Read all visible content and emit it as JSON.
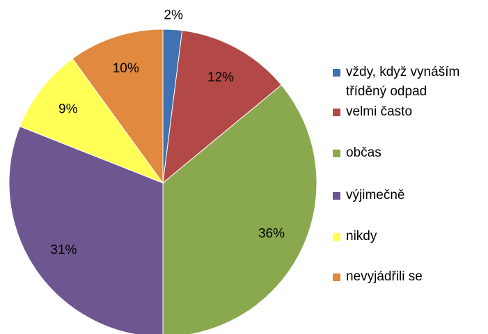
{
  "chart_data": {
    "type": "pie",
    "categories": [
      "vždy, když vynáším tříděný odpad",
      "velmi často",
      "občas",
      "výjimečně",
      "nikdy",
      "nevyjádřili se"
    ],
    "values": [
      2,
      12,
      36,
      31,
      9,
      10
    ],
    "value_labels": [
      "2%",
      "12%",
      "36%",
      "31%",
      "9%",
      "10%"
    ],
    "colors": [
      "#3f71b3",
      "#b24946",
      "#8aa84e",
      "#6e5790",
      "#ffff55",
      "#e0893f"
    ],
    "legend": "right"
  }
}
